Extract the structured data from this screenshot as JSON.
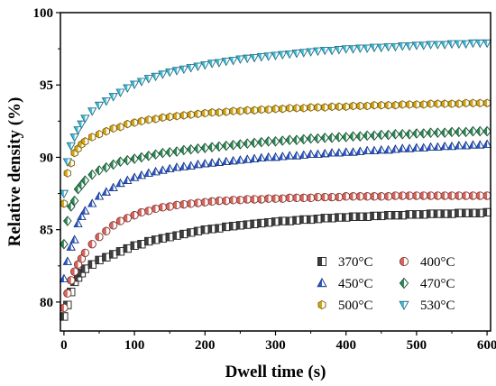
{
  "chart_data": {
    "type": "scatter",
    "title": "",
    "xlabel": "Dwell time (s)",
    "ylabel": "Relative density (%)",
    "xlim": [
      -5,
      605
    ],
    "ylim": [
      78,
      100
    ],
    "xticks": [
      0,
      100,
      200,
      300,
      400,
      500,
      600
    ],
    "yticks": [
      80,
      85,
      90,
      95,
      100
    ],
    "xtick_labels": [
      "0",
      "100",
      "200",
      "300",
      "400",
      "500",
      "600"
    ],
    "ytick_labels": [
      "80",
      "85",
      "90",
      "95",
      "100"
    ],
    "grid": false,
    "legend_position": "bottom-right",
    "x": [
      0,
      5,
      10,
      15,
      20,
      25,
      30,
      40,
      50,
      60,
      70,
      80,
      90,
      100,
      110,
      120,
      130,
      140,
      150,
      160,
      170,
      180,
      190,
      200,
      210,
      220,
      230,
      240,
      250,
      260,
      270,
      280,
      290,
      300,
      310,
      320,
      330,
      340,
      350,
      360,
      370,
      380,
      390,
      400,
      410,
      420,
      430,
      440,
      450,
      460,
      470,
      480,
      490,
      500,
      510,
      520,
      530,
      540,
      550,
      560,
      570,
      580,
      590,
      600
    ],
    "series": [
      {
        "name": "370°C",
        "marker": "square",
        "color": "#3f3f3f",
        "values": [
          79.0,
          79.8,
          80.7,
          81.4,
          81.7,
          82.0,
          82.3,
          82.6,
          82.9,
          83.1,
          83.3,
          83.5,
          83.7,
          83.9,
          84.0,
          84.2,
          84.3,
          84.4,
          84.5,
          84.6,
          84.7,
          84.8,
          84.9,
          85.0,
          85.05,
          85.1,
          85.2,
          85.25,
          85.3,
          85.35,
          85.4,
          85.45,
          85.5,
          85.55,
          85.6,
          85.6,
          85.65,
          85.7,
          85.7,
          85.75,
          85.8,
          85.8,
          85.85,
          85.85,
          85.9,
          85.9,
          85.9,
          85.95,
          85.95,
          86.0,
          86.0,
          86.0,
          86.05,
          86.05,
          86.05,
          86.1,
          86.1,
          86.1,
          86.1,
          86.15,
          86.15,
          86.15,
          86.15,
          86.2
        ]
      },
      {
        "name": "400°C",
        "marker": "circle",
        "color": "#d9635a",
        "values": [
          79.6,
          80.6,
          81.5,
          82.1,
          82.6,
          83.0,
          83.4,
          84.0,
          84.5,
          84.9,
          85.3,
          85.6,
          85.8,
          86.0,
          86.2,
          86.3,
          86.45,
          86.55,
          86.6,
          86.7,
          86.75,
          86.8,
          86.85,
          86.9,
          86.95,
          87.0,
          87.0,
          87.05,
          87.05,
          87.1,
          87.1,
          87.1,
          87.15,
          87.15,
          87.15,
          87.2,
          87.2,
          87.2,
          87.2,
          87.25,
          87.25,
          87.25,
          87.25,
          87.3,
          87.3,
          87.3,
          87.3,
          87.3,
          87.3,
          87.3,
          87.35,
          87.35,
          87.35,
          87.35,
          87.35,
          87.35,
          87.35,
          87.35,
          87.35,
          87.35,
          87.35,
          87.35,
          87.35,
          87.35
        ]
      },
      {
        "name": "450°C",
        "marker": "triangle-up",
        "color": "#2a5bd7",
        "values": [
          81.6,
          82.8,
          83.8,
          84.3,
          85.4,
          85.9,
          86.3,
          86.8,
          87.3,
          87.6,
          87.9,
          88.2,
          88.4,
          88.6,
          88.75,
          88.9,
          89.0,
          89.1,
          89.2,
          89.3,
          89.35,
          89.4,
          89.5,
          89.55,
          89.6,
          89.65,
          89.7,
          89.75,
          89.8,
          89.85,
          89.9,
          89.95,
          90.0,
          90.0,
          90.05,
          90.1,
          90.1,
          90.15,
          90.2,
          90.2,
          90.25,
          90.3,
          90.3,
          90.35,
          90.35,
          90.4,
          90.45,
          90.45,
          90.5,
          90.5,
          90.55,
          90.6,
          90.6,
          90.65,
          90.65,
          90.7,
          90.7,
          90.75,
          90.75,
          90.8,
          90.8,
          90.85,
          90.85,
          90.9
        ]
      },
      {
        "name": "470°C",
        "marker": "diamond",
        "color": "#2e8b57",
        "values": [
          84.0,
          85.6,
          86.6,
          87.0,
          87.8,
          88.1,
          88.4,
          88.8,
          89.1,
          89.3,
          89.5,
          89.7,
          89.8,
          89.9,
          90.0,
          90.1,
          90.2,
          90.3,
          90.35,
          90.4,
          90.5,
          90.55,
          90.6,
          90.65,
          90.7,
          90.75,
          90.8,
          90.85,
          90.9,
          90.95,
          91.0,
          91.05,
          91.1,
          91.1,
          91.15,
          91.2,
          91.2,
          91.25,
          91.3,
          91.3,
          91.35,
          91.35,
          91.4,
          91.4,
          91.45,
          91.45,
          91.5,
          91.5,
          91.55,
          91.55,
          91.6,
          91.6,
          91.6,
          91.65,
          91.65,
          91.7,
          91.7,
          91.7,
          91.75,
          91.75,
          91.75,
          91.8,
          91.8,
          91.8
        ]
      },
      {
        "name": "500°C",
        "marker": "hexagon",
        "color": "#d4a514",
        "values": [
          86.8,
          88.9,
          89.6,
          90.3,
          90.6,
          90.9,
          91.1,
          91.4,
          91.6,
          91.8,
          92.0,
          92.1,
          92.3,
          92.4,
          92.5,
          92.6,
          92.65,
          92.75,
          92.8,
          92.85,
          92.9,
          92.95,
          93.0,
          93.05,
          93.1,
          93.1,
          93.15,
          93.2,
          93.2,
          93.25,
          93.25,
          93.3,
          93.3,
          93.35,
          93.35,
          93.4,
          93.4,
          93.4,
          93.45,
          93.45,
          93.45,
          93.5,
          93.5,
          93.5,
          93.55,
          93.55,
          93.55,
          93.6,
          93.6,
          93.6,
          93.6,
          93.65,
          93.65,
          93.65,
          93.65,
          93.7,
          93.7,
          93.7,
          93.7,
          93.7,
          93.75,
          93.75,
          93.75,
          93.75
        ]
      },
      {
        "name": "530°C",
        "marker": "triangle-down",
        "color": "#3fbfe0",
        "values": [
          87.5,
          89.7,
          90.8,
          91.4,
          91.9,
          92.3,
          92.7,
          93.2,
          93.6,
          93.9,
          94.2,
          94.5,
          94.8,
          95.05,
          95.25,
          95.45,
          95.6,
          95.75,
          95.9,
          96.0,
          96.1,
          96.2,
          96.3,
          96.4,
          96.5,
          96.55,
          96.65,
          96.7,
          96.8,
          96.85,
          96.9,
          96.95,
          97.0,
          97.05,
          97.1,
          97.15,
          97.2,
          97.25,
          97.3,
          97.35,
          97.4,
          97.4,
          97.45,
          97.5,
          97.5,
          97.55,
          97.55,
          97.6,
          97.6,
          97.65,
          97.65,
          97.7,
          97.7,
          97.75,
          97.75,
          97.8,
          97.8,
          97.8,
          97.85,
          97.85,
          97.85,
          97.9,
          97.9,
          97.9
        ]
      }
    ]
  }
}
